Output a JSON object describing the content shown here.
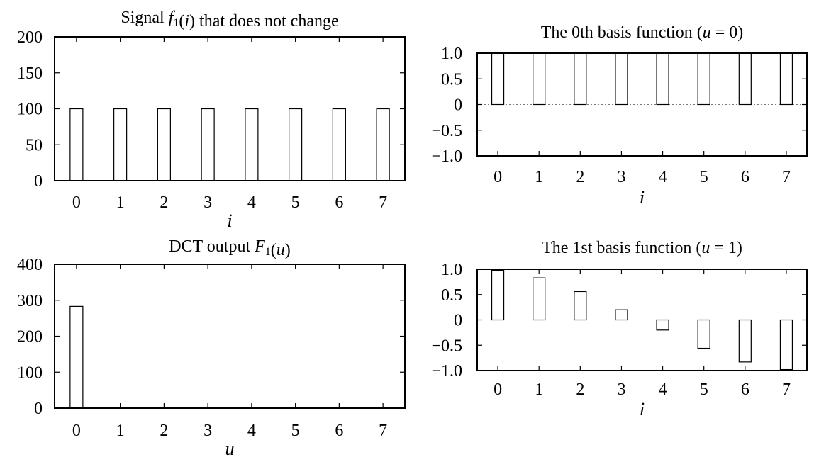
{
  "chart_data": [
    {
      "type": "bar",
      "title": {
        "parts": [
          {
            "text": "Signal ",
            "style": "normal"
          },
          {
            "text": "f",
            "style": "italic"
          },
          {
            "text": "1",
            "style": "sub"
          },
          {
            "text": "(",
            "style": "normal"
          },
          {
            "text": "i",
            "style": "italic"
          },
          {
            "text": ") that does not change",
            "style": "normal"
          }
        ]
      },
      "xlabel": "i",
      "categories": [
        "0",
        "1",
        "2",
        "3",
        "4",
        "5",
        "6",
        "7"
      ],
      "values": [
        100,
        100,
        100,
        100,
        100,
        100,
        100,
        100
      ],
      "ylim": [
        0,
        200
      ],
      "yticks": [
        0,
        50,
        100,
        150,
        200
      ],
      "ytick_labels": [
        "0",
        "50",
        "100",
        "150",
        "200"
      ],
      "zero_line": false
    },
    {
      "type": "bar",
      "title": {
        "parts": [
          {
            "text": "DCT output ",
            "style": "normal"
          },
          {
            "text": "F",
            "style": "italic"
          },
          {
            "text": "1",
            "style": "sub"
          },
          {
            "text": "(",
            "style": "normal"
          },
          {
            "text": "u",
            "style": "italic"
          },
          {
            "text": ")",
            "style": "normal"
          }
        ]
      },
      "xlabel": "u",
      "categories": [
        "0",
        "1",
        "2",
        "3",
        "4",
        "5",
        "6",
        "7"
      ],
      "values": [
        283,
        0,
        0,
        0,
        0,
        0,
        0,
        0
      ],
      "ylim": [
        0,
        400
      ],
      "yticks": [
        0,
        100,
        200,
        300,
        400
      ],
      "ytick_labels": [
        "0",
        "100",
        "200",
        "300",
        "400"
      ],
      "zero_line": false
    },
    {
      "type": "bar",
      "title": {
        "parts": [
          {
            "text": "The 0th basis function (",
            "style": "normal"
          },
          {
            "text": "u",
            "style": "italic"
          },
          {
            "text": " = 0)",
            "style": "normal"
          }
        ]
      },
      "xlabel": "i",
      "categories": [
        "0",
        "1",
        "2",
        "3",
        "4",
        "5",
        "6",
        "7"
      ],
      "values": [
        1.0,
        1.0,
        1.0,
        1.0,
        1.0,
        1.0,
        1.0,
        1.0
      ],
      "ylim": [
        -1.0,
        1.0
      ],
      "yticks": [
        -1.0,
        -0.5,
        0,
        0.5,
        1.0
      ],
      "ytick_labels": [
        "−1.0",
        "−0.5",
        "0",
        "0.5",
        "1.0"
      ],
      "zero_line": true
    },
    {
      "type": "bar",
      "title": {
        "parts": [
          {
            "text": "The 1st basis function (",
            "style": "normal"
          },
          {
            "text": "u",
            "style": "italic"
          },
          {
            "text": " = 1)",
            "style": "normal"
          }
        ]
      },
      "xlabel": "i",
      "categories": [
        "0",
        "1",
        "2",
        "3",
        "4",
        "5",
        "6",
        "7"
      ],
      "values": [
        0.98,
        0.83,
        0.56,
        0.2,
        -0.2,
        -0.56,
        -0.83,
        -0.98
      ],
      "ylim": [
        -1.0,
        1.0
      ],
      "yticks": [
        -1.0,
        -0.5,
        0,
        0.5,
        1.0
      ],
      "ytick_labels": [
        "−1.0",
        "−0.5",
        "0",
        "0.5",
        "1.0"
      ],
      "zero_line": true
    }
  ]
}
